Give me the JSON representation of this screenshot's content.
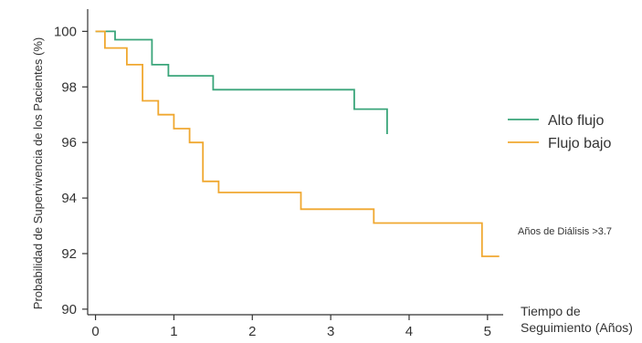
{
  "chart_data": {
    "type": "line",
    "step": true,
    "xlabel_line1": "Tiempo de",
    "xlabel_line2": "Seguimiento (Años)",
    "ylabel": "Probabilidad de Supervivencia de los Pacientes (%)",
    "xlim": [
      -0.1,
      5.2
    ],
    "ylim": [
      89.8,
      100.8
    ],
    "x_ticks": [
      0,
      1,
      2,
      3,
      4,
      5
    ],
    "y_ticks": [
      90,
      92,
      94,
      96,
      98,
      100
    ],
    "grid": false,
    "legend_position": "right",
    "annotation": "Años de Diálisis >3.7",
    "series": [
      {
        "name": "Alto flujo",
        "color": "#3aa57a",
        "points": [
          [
            0,
            100
          ],
          [
            0.25,
            100
          ],
          [
            0.25,
            99.7
          ],
          [
            0.72,
            99.7
          ],
          [
            0.72,
            98.8
          ],
          [
            0.93,
            98.8
          ],
          [
            0.93,
            98.4
          ],
          [
            1.5,
            98.4
          ],
          [
            1.5,
            97.9
          ],
          [
            3.3,
            97.9
          ],
          [
            3.3,
            97.2
          ],
          [
            3.72,
            97.2
          ],
          [
            3.72,
            96.3
          ]
        ]
      },
      {
        "name": "Flujo bajo",
        "color": "#f0a830",
        "points": [
          [
            0,
            100
          ],
          [
            0.12,
            100
          ],
          [
            0.12,
            99.4
          ],
          [
            0.4,
            99.4
          ],
          [
            0.4,
            98.8
          ],
          [
            0.6,
            98.8
          ],
          [
            0.6,
            97.5
          ],
          [
            0.8,
            97.5
          ],
          [
            0.8,
            97.0
          ],
          [
            1.0,
            97.0
          ],
          [
            1.0,
            96.5
          ],
          [
            1.2,
            96.5
          ],
          [
            1.2,
            96.0
          ],
          [
            1.37,
            96.0
          ],
          [
            1.37,
            94.6
          ],
          [
            1.57,
            94.6
          ],
          [
            1.57,
            94.2
          ],
          [
            2.62,
            94.2
          ],
          [
            2.62,
            93.6
          ],
          [
            3.55,
            93.6
          ],
          [
            3.55,
            93.1
          ],
          [
            4.93,
            93.1
          ],
          [
            4.93,
            91.9
          ],
          [
            5.15,
            91.9
          ]
        ]
      }
    ]
  }
}
